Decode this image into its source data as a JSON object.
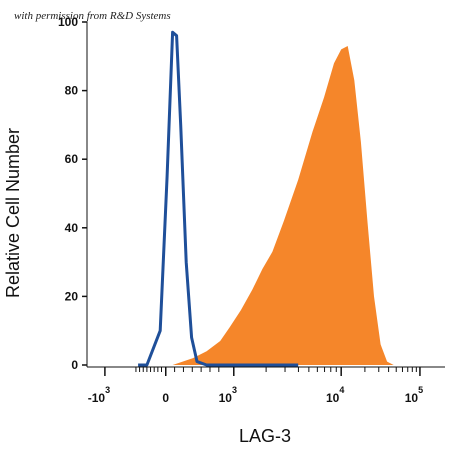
{
  "watermark": "with permission from R&D Systems",
  "chart_data": {
    "type": "area",
    "xlabel": "LAG-3",
    "ylabel": "Relative Cell Number",
    "ylim": [
      0,
      100
    ],
    "y_ticks": [
      0,
      20,
      40,
      60,
      80,
      100
    ],
    "x_ticks": [
      {
        "base": "-10",
        "exp": "3"
      },
      {
        "base": "0",
        "exp": ""
      },
      {
        "base": "10",
        "exp": "3"
      },
      {
        "base": "10",
        "exp": "4"
      },
      {
        "base": "10",
        "exp": "5"
      }
    ],
    "series": [
      {
        "style": "outline",
        "color": "#1f4f99",
        "points": [
          [
            0.0,
            0
          ],
          [
            0.08,
            0
          ],
          [
            0.2,
            10
          ],
          [
            0.26,
            55
          ],
          [
            0.3,
            97
          ],
          [
            0.33,
            96
          ],
          [
            0.36,
            70
          ],
          [
            0.4,
            30
          ],
          [
            0.44,
            8
          ],
          [
            0.48,
            1
          ],
          [
            0.55,
            0
          ],
          [
            1.2,
            0
          ]
        ]
      },
      {
        "style": "filled",
        "color": "#f5862a",
        "points": [
          [
            0.3,
            0
          ],
          [
            0.45,
            2
          ],
          [
            0.55,
            4
          ],
          [
            0.65,
            7
          ],
          [
            0.72,
            11
          ],
          [
            0.8,
            16
          ],
          [
            0.88,
            22
          ],
          [
            0.95,
            28
          ],
          [
            1.02,
            33
          ],
          [
            1.1,
            42
          ],
          [
            1.2,
            54
          ],
          [
            1.3,
            68
          ],
          [
            1.38,
            78
          ],
          [
            1.45,
            88
          ],
          [
            1.5,
            92
          ],
          [
            1.55,
            93
          ],
          [
            1.6,
            83
          ],
          [
            1.65,
            65
          ],
          [
            1.7,
            42
          ],
          [
            1.75,
            20
          ],
          [
            1.8,
            6
          ],
          [
            1.85,
            1
          ],
          [
            1.9,
            0
          ]
        ]
      }
    ]
  }
}
